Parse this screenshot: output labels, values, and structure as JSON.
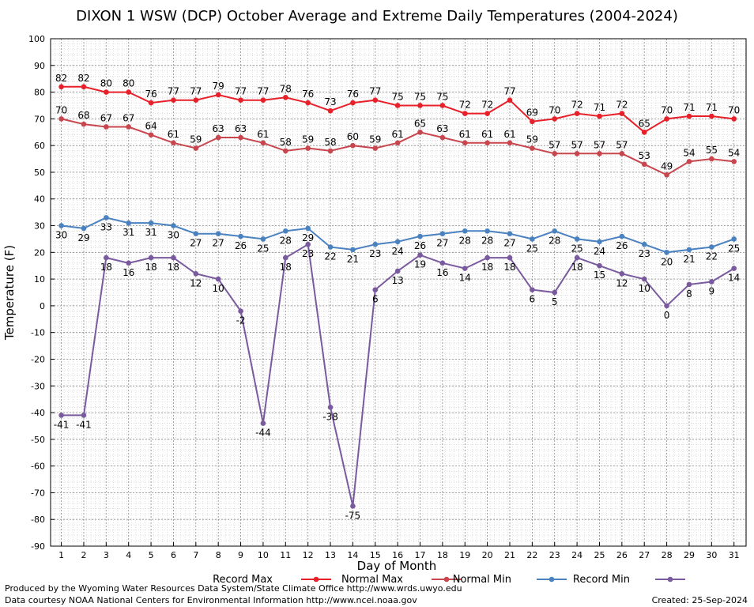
{
  "chart_data": {
    "type": "line",
    "title": "DIXON 1 WSW (DCP) October Average and Extreme Daily Temperatures (2004-2024)",
    "xlabel": "Day of Month",
    "ylabel": "Temperature (F)",
    "xlim": [
      1,
      31
    ],
    "ylim": [
      -90,
      100
    ],
    "ytick_step": 10,
    "grid": true,
    "legend_position": "bottom",
    "x": [
      1,
      2,
      3,
      4,
      5,
      6,
      7,
      8,
      9,
      10,
      11,
      12,
      13,
      14,
      15,
      16,
      17,
      18,
      19,
      20,
      21,
      22,
      23,
      24,
      25,
      26,
      27,
      28,
      29,
      30,
      31
    ],
    "series": [
      {
        "name": "Record Max",
        "color": "#e8202a",
        "label_pos": "above",
        "values": [
          82,
          82,
          80,
          80,
          76,
          77,
          77,
          79,
          77,
          77,
          78,
          76,
          73,
          76,
          77,
          75,
          75,
          75,
          72,
          72,
          77,
          69,
          70,
          72,
          71,
          72,
          65,
          70,
          71,
          71,
          70
        ]
      },
      {
        "name": "Normal Max",
        "color": "#c8464e",
        "label_pos": "above",
        "values": [
          70,
          68,
          67,
          67,
          64,
          61,
          59,
          63,
          63,
          61,
          58,
          59,
          58,
          60,
          59,
          61,
          65,
          63,
          61,
          61,
          61,
          59,
          57,
          57,
          57,
          57,
          53,
          49,
          54,
          55,
          54
        ]
      },
      {
        "name": "Normal Min",
        "color": "#4a82c0",
        "label_pos": "below",
        "values": [
          30,
          29,
          33,
          31,
          31,
          30,
          27,
          27,
          26,
          25,
          28,
          29,
          22,
          21,
          23,
          24,
          26,
          27,
          28,
          28,
          27,
          25,
          28,
          25,
          24,
          26,
          23,
          20,
          21,
          22,
          25
        ]
      },
      {
        "name": "Record Min",
        "color": "#7a5a9e",
        "label_pos": "below",
        "values": [
          -41,
          -41,
          18,
          16,
          18,
          18,
          12,
          10,
          -2,
          -44,
          18,
          23,
          -38,
          -75,
          6,
          13,
          19,
          16,
          14,
          18,
          18,
          6,
          5,
          18,
          15,
          12,
          10,
          0,
          8,
          9,
          14
        ]
      }
    ]
  },
  "footer": {
    "line1": "Produced by the Wyoming Water Resources Data System/State Climate Office http://www.wrds.uwyo.edu",
    "line2": "Data courtesy NOAA National Centers for Environmental Information http://www.ncei.noaa.gov",
    "created": "Created:  25-Sep-2024"
  }
}
